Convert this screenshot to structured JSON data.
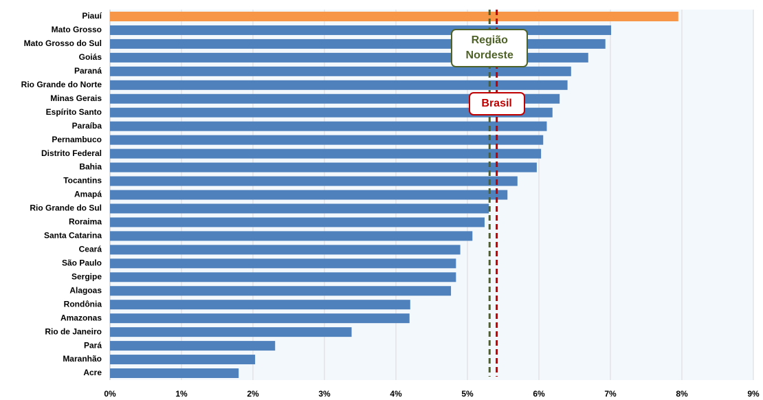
{
  "chart_data": {
    "type": "bar",
    "orientation": "horizontal",
    "categories": [
      "Piauí",
      "Mato Grosso",
      "Mato Grosso do Sul",
      "Goiás",
      "Paraná",
      "Rio Grande do Norte",
      "Minas Gerais",
      "Espírito Santo",
      "Paraíba",
      "Pernambuco",
      "Distrito Federal",
      "Bahia",
      "Tocantins",
      "Amapá",
      "Rio Grande do Sul",
      "Roraima",
      "Santa Catarina",
      "Ceará",
      "São Paulo",
      "Sergipe",
      "Alagoas",
      "Rondônia",
      "Amazonas",
      "Rio de Janeiro",
      "Pará",
      "Maranhão",
      "Acre"
    ],
    "values": [
      7.95,
      7.01,
      6.93,
      6.69,
      6.45,
      6.4,
      6.29,
      6.19,
      6.11,
      6.06,
      6.03,
      5.97,
      5.7,
      5.56,
      5.3,
      5.24,
      5.07,
      4.9,
      4.84,
      4.84,
      4.77,
      4.2,
      4.19,
      3.38,
      2.31,
      2.03,
      1.8
    ],
    "colors": [
      "#f79646",
      "#4f81bd",
      "#4f81bd",
      "#4f81bd",
      "#4f81bd",
      "#4f81bd",
      "#4f81bd",
      "#4f81bd",
      "#4f81bd",
      "#4f81bd",
      "#4f81bd",
      "#4f81bd",
      "#4f81bd",
      "#4f81bd",
      "#4f81bd",
      "#4f81bd",
      "#4f81bd",
      "#4f81bd",
      "#4f81bd",
      "#4f81bd",
      "#4f81bd",
      "#4f81bd",
      "#4f81bd",
      "#4f81bd",
      "#4f81bd",
      "#4f81bd",
      "#4f81bd"
    ],
    "xlim": [
      0,
      9
    ],
    "xticks": [
      {
        "value": 0,
        "label": "0%"
      },
      {
        "value": 1,
        "label": "1%"
      },
      {
        "value": 2,
        "label": "2%"
      },
      {
        "value": 3,
        "label": "3%"
      },
      {
        "value": 4,
        "label": "4%"
      },
      {
        "value": 5,
        "label": "5%"
      },
      {
        "value": 6,
        "label": "6%"
      },
      {
        "value": 7,
        "label": "7%"
      },
      {
        "value": 8,
        "label": "8%"
      },
      {
        "value": 9,
        "label": "9%"
      }
    ],
    "grid": true,
    "reference_lines": [
      {
        "label": "Região Nordeste",
        "value": 5.31,
        "color": "#4f6228"
      },
      {
        "label": "Brasil",
        "value": 5.41,
        "color": "#c00000"
      }
    ]
  }
}
